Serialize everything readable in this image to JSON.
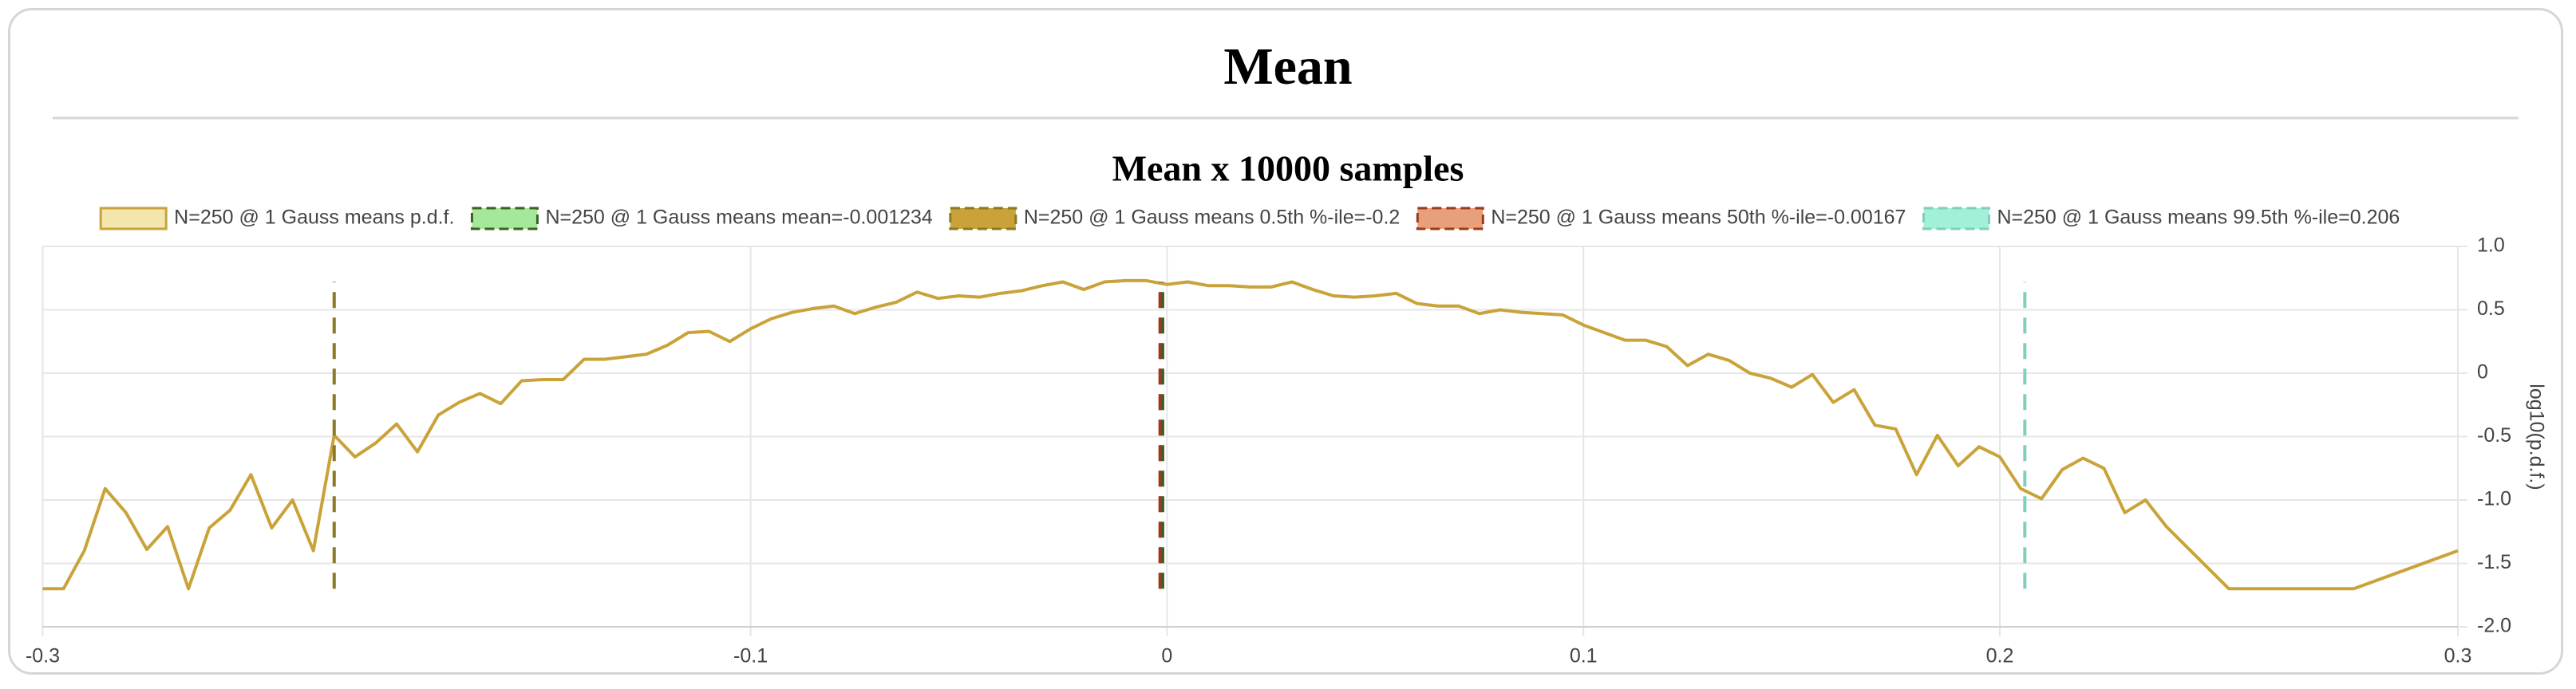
{
  "header": {
    "title": "Mean"
  },
  "chart_data": {
    "type": "line",
    "title": "Mean x 10000 samples",
    "y_axis_label": "log10(p.d.f.)",
    "grid": true,
    "xlim": [
      -0.27,
      0.31
    ],
    "xticks": [
      {
        "value": -0.27,
        "label": "-0.3"
      },
      -0.1,
      0,
      0.1,
      0.2,
      {
        "value": 0.31,
        "label": "0.3"
      }
    ],
    "ylim": [
      -2,
      1
    ],
    "yticks": [
      {
        "value": -2,
        "label": "-2.0"
      },
      -1.5,
      {
        "value": -1,
        "label": "-1.0"
      },
      -0.5,
      0,
      0.5,
      {
        "value": 1,
        "label": "1.0"
      }
    ],
    "series": [
      {
        "name": "N=250 @ 1 Gauss means p.d.f.",
        "color": "#c9a33a",
        "fill": "#f3e6ad",
        "x": [
          -0.27,
          -0.265,
          -0.26,
          -0.255,
          -0.25,
          -0.245,
          -0.24,
          -0.235,
          -0.23,
          -0.225,
          -0.22,
          -0.215,
          -0.21,
          -0.205,
          -0.2,
          -0.195,
          -0.19,
          -0.185,
          -0.18,
          -0.175,
          -0.17,
          -0.165,
          -0.16,
          -0.155,
          -0.15,
          -0.145,
          -0.14,
          -0.135,
          -0.13,
          -0.125,
          -0.12,
          -0.115,
          -0.11,
          -0.105,
          -0.1,
          -0.095,
          -0.09,
          -0.085,
          -0.08,
          -0.075,
          -0.07,
          -0.065,
          -0.06,
          -0.055,
          -0.05,
          -0.045,
          -0.04,
          -0.035,
          -0.03,
          -0.025,
          -0.02,
          -0.015,
          -0.01,
          -0.005,
          0,
          0.005,
          0.01,
          0.015,
          0.02,
          0.025,
          0.03,
          0.035,
          0.04,
          0.045,
          0.05,
          0.055,
          0.06,
          0.065,
          0.07,
          0.075,
          0.08,
          0.085,
          0.09,
          0.095,
          0.1,
          0.105,
          0.11,
          0.115,
          0.12,
          0.125,
          0.13,
          0.135,
          0.14,
          0.145,
          0.15,
          0.155,
          0.16,
          0.165,
          0.17,
          0.175,
          0.18,
          0.185,
          0.19,
          0.195,
          0.2,
          0.205,
          0.21,
          0.215,
          0.22,
          0.225,
          0.23,
          0.235,
          0.24,
          0.255,
          0.285,
          0.31
        ],
        "values": [
          -1.7,
          -1.7,
          -1.4,
          -0.91,
          -1.1,
          -1.39,
          -1.21,
          -1.7,
          -1.22,
          -1.08,
          -0.8,
          -1.22,
          -1.0,
          -1.4,
          -0.49,
          -0.66,
          -0.55,
          -0.4,
          -0.62,
          -0.33,
          -0.23,
          -0.16,
          -0.24,
          -0.06,
          -0.05,
          -0.05,
          0.11,
          0.11,
          0.13,
          0.15,
          0.22,
          0.32,
          0.33,
          0.25,
          0.35,
          0.43,
          0.48,
          0.51,
          0.53,
          0.47,
          0.52,
          0.56,
          0.64,
          0.59,
          0.61,
          0.6,
          0.63,
          0.65,
          0.69,
          0.72,
          0.66,
          0.72,
          0.73,
          0.73,
          0.7,
          0.72,
          0.69,
          0.69,
          0.68,
          0.68,
          0.72,
          0.66,
          0.61,
          0.6,
          0.61,
          0.63,
          0.55,
          0.53,
          0.53,
          0.47,
          0.5,
          0.48,
          0.47,
          0.46,
          0.38,
          0.32,
          0.26,
          0.26,
          0.21,
          0.06,
          0.15,
          0.1,
          0.0,
          -0.04,
          -0.11,
          -0.01,
          -0.23,
          -0.13,
          -0.41,
          -0.44,
          -0.8,
          -0.49,
          -0.73,
          -0.58,
          -0.66,
          -0.91,
          -0.99,
          -0.76,
          -0.67,
          -0.75,
          -1.1,
          -1.0,
          -1.21,
          -1.7,
          -1.7,
          -1.4
        ]
      }
    ],
    "markers": [
      {
        "name": "N=250 @ 1 Gauss means mean=-0.001234",
        "color": "#3d6027",
        "fill": "#a6e89a",
        "x": -0.001234,
        "values": [
          -1.7,
          0.72
        ]
      },
      {
        "name": "N=250 @ 1 Gauss means 0.5th %-ile=-0.2",
        "color": "#8a7a23",
        "fill": "#c9a33a",
        "x": -0.2,
        "values": [
          -1.7,
          0.72
        ]
      },
      {
        "name": "N=250 @ 1 Gauss means 50th %-ile=-0.00167",
        "color": "#9b3a1e",
        "fill": "#e8a07a",
        "x": -0.00167,
        "values": [
          -1.7,
          0.72
        ]
      },
      {
        "name": "N=250 @ 1 Gauss means 99.5th %-ile=0.206",
        "color": "#7fcfbf",
        "fill": "#a3f0d8",
        "x": 0.206,
        "values": [
          -1.7,
          0.72
        ]
      }
    ]
  }
}
